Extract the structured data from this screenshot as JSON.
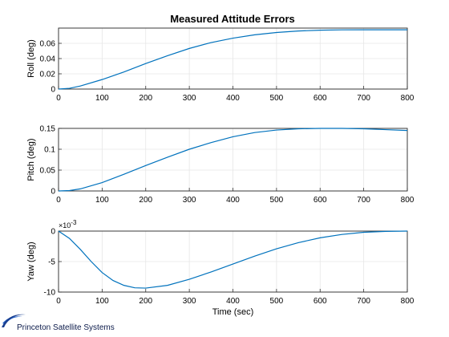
{
  "chart_data": [
    {
      "type": "line",
      "title": "Measured Attitude Errors",
      "ylabel": "Roll  (deg)",
      "xlabel": "",
      "xlim": [
        0,
        800
      ],
      "ylim": [
        0,
        0.08
      ],
      "xticks": [
        "0",
        "100",
        "200",
        "300",
        "400",
        "500",
        "600",
        "700",
        "800"
      ],
      "yticks": [
        "0",
        "0.02",
        "0.04",
        "0.06"
      ],
      "ytick_values": [
        0,
        0.02,
        0.04,
        0.06
      ],
      "grid": true,
      "color": "#0072bd",
      "x": [
        0,
        25,
        50,
        100,
        150,
        200,
        250,
        300,
        350,
        400,
        450,
        500,
        550,
        600,
        650,
        700,
        750,
        800
      ],
      "y": [
        0,
        0.001,
        0.004,
        0.0125,
        0.0225,
        0.0335,
        0.0438,
        0.0533,
        0.061,
        0.0668,
        0.0712,
        0.0742,
        0.0762,
        0.0772,
        0.0777,
        0.0778,
        0.0778,
        0.0778
      ]
    },
    {
      "type": "line",
      "ylabel": "Pitch (deg)",
      "xlabel": "",
      "xlim": [
        0,
        800
      ],
      "ylim": [
        0,
        0.15
      ],
      "xticks": [
        "0",
        "100",
        "200",
        "300",
        "400",
        "500",
        "600",
        "700",
        "800"
      ],
      "yticks": [
        "0",
        "0.05",
        "0.1",
        "0.15"
      ],
      "ytick_values": [
        0,
        0.05,
        0.1,
        0.15
      ],
      "grid": true,
      "color": "#0072bd",
      "x": [
        0,
        25,
        50,
        100,
        150,
        200,
        250,
        300,
        350,
        400,
        450,
        500,
        550,
        600,
        650,
        700,
        750,
        800
      ],
      "y": [
        0,
        0.001,
        0.005,
        0.02,
        0.04,
        0.061,
        0.081,
        0.1,
        0.116,
        0.13,
        0.14,
        0.146,
        0.149,
        0.15,
        0.15,
        0.149,
        0.147,
        0.145
      ]
    },
    {
      "type": "line",
      "ylabel": "Yaw  (deg)",
      "xlabel": "Time (sec)",
      "xlim": [
        0,
        800
      ],
      "ylim": [
        -10,
        0
      ],
      "exponent_label": "×10",
      "exponent_power": "-3",
      "xticks": [
        "0",
        "100",
        "200",
        "300",
        "400",
        "500",
        "600",
        "700",
        "800"
      ],
      "yticks": [
        "0",
        "-5",
        "-10"
      ],
      "ytick_values": [
        0,
        -5,
        -10
      ],
      "grid": true,
      "color": "#0072bd",
      "x": [
        0,
        25,
        50,
        75,
        100,
        125,
        150,
        175,
        200,
        250,
        300,
        350,
        400,
        450,
        500,
        550,
        600,
        650,
        700,
        750,
        800
      ],
      "y": [
        0,
        -1.2,
        -3.0,
        -5.0,
        -6.8,
        -8.1,
        -8.9,
        -9.3,
        -9.35,
        -8.9,
        -7.9,
        -6.7,
        -5.4,
        -4.1,
        -2.9,
        -1.9,
        -1.1,
        -0.55,
        -0.2,
        -0.05,
        0
      ]
    }
  ],
  "branding": {
    "company": "Princeton Satellite Systems",
    "logo_color": "#2563c9"
  }
}
